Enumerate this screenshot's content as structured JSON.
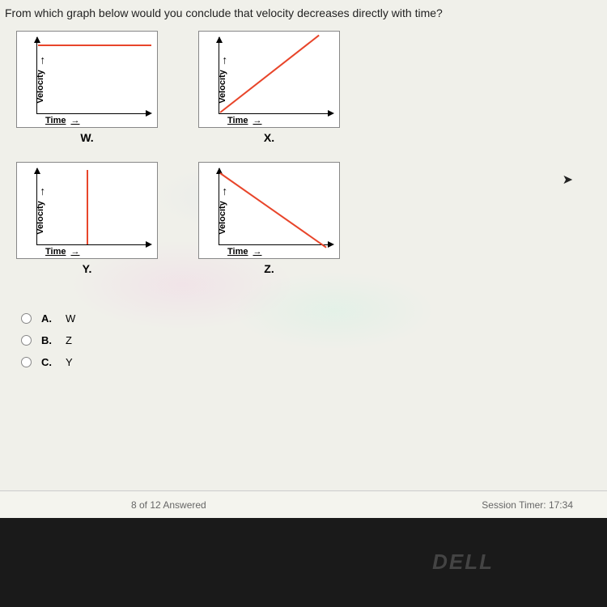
{
  "question_text": "From which graph below would you conclude that velocity decreases directly with time?",
  "axis": {
    "y_label": "Velocity",
    "x_label": "Time",
    "arrow_glyph": "→"
  },
  "line_color": "#e8452a",
  "charts": {
    "W": {
      "letter": "W.",
      "type": "horizontal",
      "style": "left:26px; top:16px; width:140px; height:2px;"
    },
    "X": {
      "letter": "X.",
      "type": "diag_up",
      "style": "left:26px; bottom:17px; width:155px; height:2px; transform-origin:left center; transform:rotate(-38deg);"
    },
    "Y": {
      "letter": "Y.",
      "type": "vertical",
      "style": "left:86px; bottom:17px; width:2px; height:92px;"
    },
    "Z": {
      "letter": "Z.",
      "type": "diag_down",
      "style": "left:26px; top:12px; width:160px; height:2px; transform-origin:left center; transform:rotate(35deg);"
    }
  },
  "options": [
    {
      "letter": "A.",
      "value": "W"
    },
    {
      "letter": "B.",
      "value": "Z"
    },
    {
      "letter": "C.",
      "value": "Y"
    }
  ],
  "footer": {
    "progress": "8 of 12 Answered",
    "timer": "Session Timer: 17:34"
  },
  "brand": "DELL"
}
